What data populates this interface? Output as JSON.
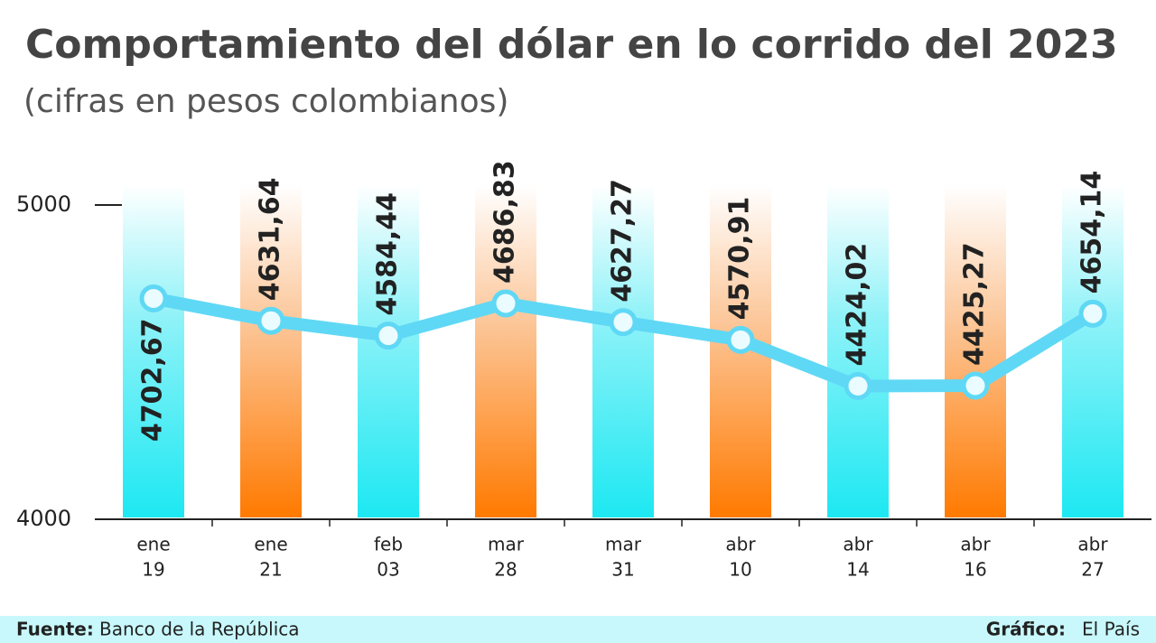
{
  "chart_data": {
    "type": "line",
    "title": "Comportamiento del dólar en lo corrido del 2023",
    "subtitle": "(cifras en pesos colombianos)",
    "categories": [
      [
        "ene",
        "19"
      ],
      [
        "ene",
        "21"
      ],
      [
        "feb",
        "03"
      ],
      [
        "mar",
        "28"
      ],
      [
        "mar",
        "31"
      ],
      [
        "abr",
        "10"
      ],
      [
        "abr",
        "14"
      ],
      [
        "abr",
        "16"
      ],
      [
        "abr",
        "27"
      ]
    ],
    "values": [
      4702.67,
      4631.64,
      4584.44,
      4686.83,
      4627.27,
      4570.91,
      4424.02,
      4425.27,
      4654.14
    ],
    "value_labels": [
      "4702,67",
      "4631,64",
      "4584,44",
      "4686,83",
      "4627,27",
      "4570,91",
      "4424,02",
      "4425,27",
      "4654,14"
    ],
    "color": "#5fd8f5",
    "ylim": [
      4000,
      5000
    ],
    "yticks": [
      4000,
      5000
    ],
    "source_label": "Fuente:",
    "source": "Banco de la República",
    "credit_label": "Gráfico:",
    "credit": "El País"
  }
}
